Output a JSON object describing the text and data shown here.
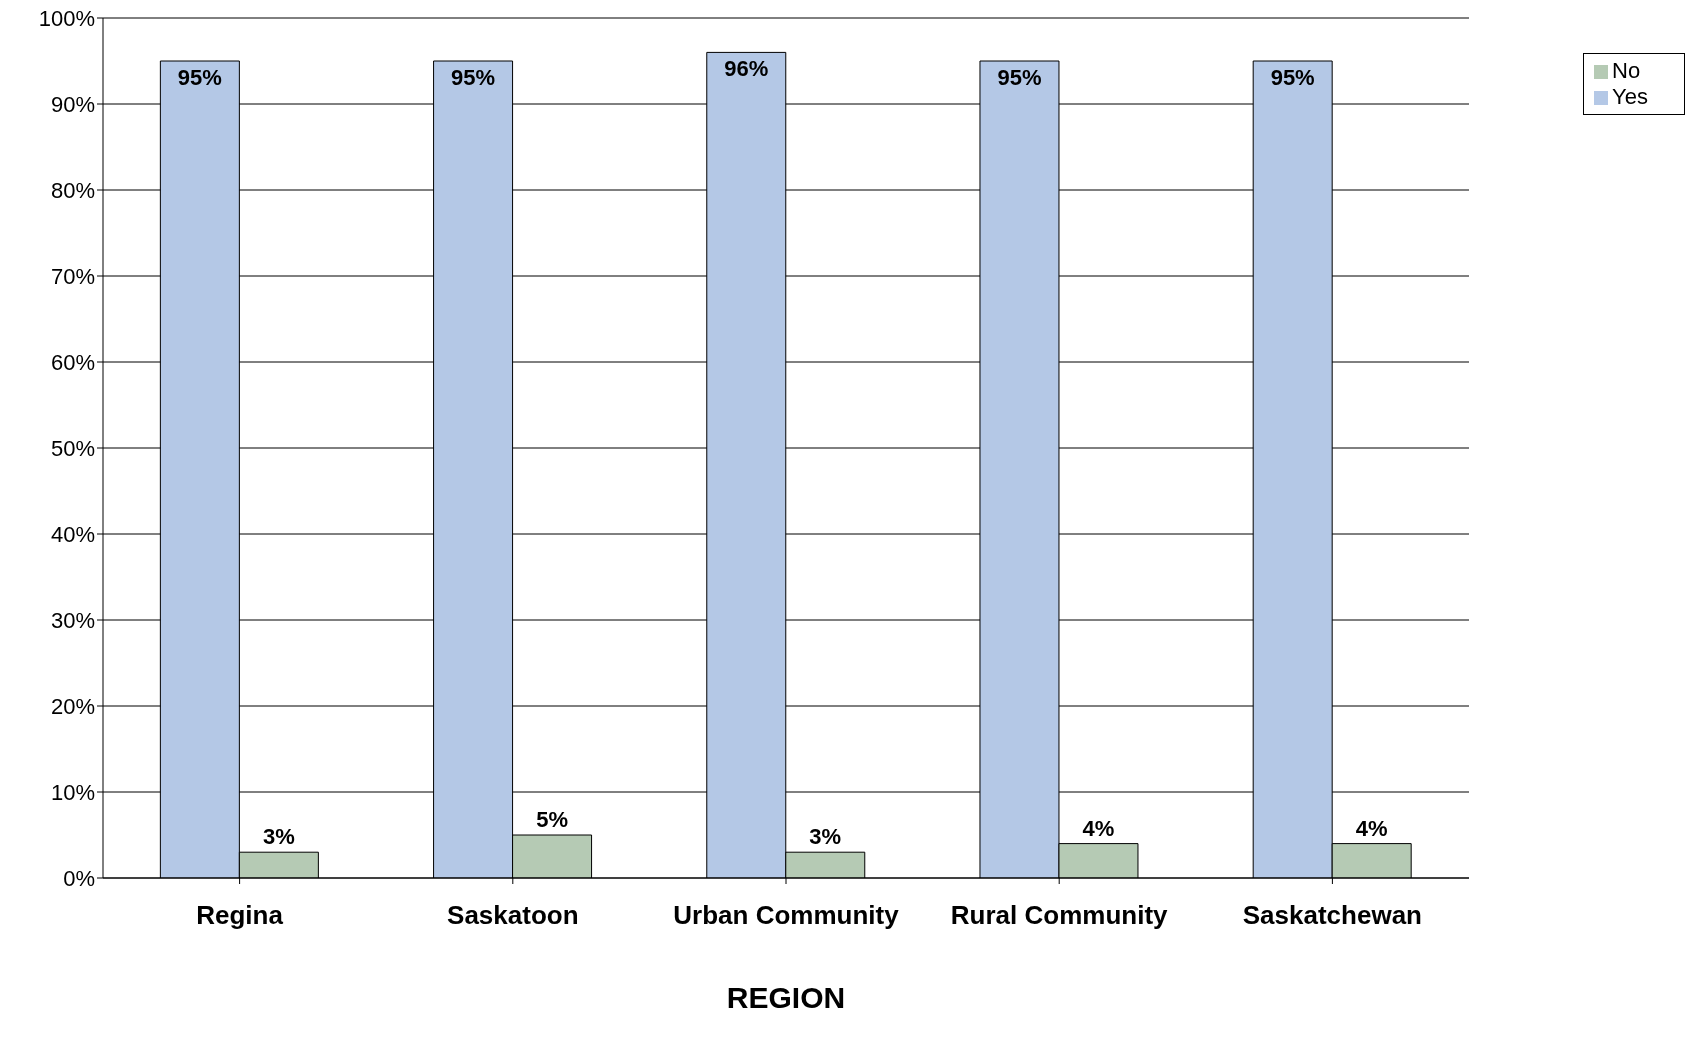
{
  "chart_data": {
    "type": "bar",
    "xlabel": "REGION",
    "categories": [
      "Regina",
      "Saskatoon",
      "Urban Community",
      "Rural Community",
      "Saskatchewan"
    ],
    "series": [
      {
        "name": "Yes",
        "color": "#b4c8e6",
        "values": [
          95,
          95,
          96,
          95,
          95
        ],
        "value_labels": [
          "95%",
          "95%",
          "96%",
          "95%",
          "95%"
        ]
      },
      {
        "name": "No",
        "color": "#b5cab4",
        "values": [
          3,
          5,
          3,
          4,
          4
        ],
        "value_labels": [
          "3%",
          "5%",
          "3%",
          "4%",
          "4%"
        ]
      }
    ],
    "ylim": [
      0,
      100
    ],
    "yticks": [
      {
        "value": 0,
        "label": "0%"
      },
      {
        "value": 10,
        "label": "10%"
      },
      {
        "value": 20,
        "label": "20%"
      },
      {
        "value": 30,
        "label": "30%"
      },
      {
        "value": 40,
        "label": "40%"
      },
      {
        "value": 50,
        "label": "50%"
      },
      {
        "value": 60,
        "label": "60%"
      },
      {
        "value": 70,
        "label": "70%"
      },
      {
        "value": 80,
        "label": "80%"
      },
      {
        "value": 90,
        "label": "90%"
      },
      {
        "value": 100,
        "label": "100%"
      }
    ],
    "grid": "y",
    "legend": "top right"
  }
}
